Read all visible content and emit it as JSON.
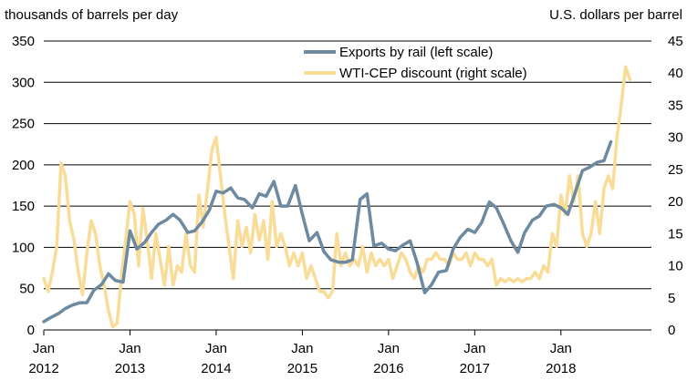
{
  "chart_data": {
    "type": "line",
    "left_axis_title": "thousands of barrels  per day",
    "right_axis_title": "U.S. dollars  per barrel",
    "left_axis": {
      "min": 0,
      "max": 350,
      "ticks": [
        "0",
        "50",
        "100",
        "150",
        "200",
        "250",
        "300",
        "350"
      ]
    },
    "right_axis": {
      "min": 0,
      "max": 45,
      "ticks": [
        "0",
        "5",
        "10",
        "15",
        "20",
        "25",
        "30",
        "35",
        "40",
        "45"
      ]
    },
    "x_range": [
      2012.0,
      2019.05
    ],
    "x_ticks": [
      {
        "month": "Jan",
        "year": "2012",
        "x": 2012
      },
      {
        "month": "Jan",
        "year": "2013",
        "x": 2013
      },
      {
        "month": "Jan",
        "year": "2014",
        "x": 2014
      },
      {
        "month": "Jan",
        "year": "2015",
        "x": 2015
      },
      {
        "month": "Jan",
        "year": "2016",
        "x": 2016
      },
      {
        "month": "Jan",
        "year": "2017",
        "x": 2017
      },
      {
        "month": "Jan",
        "year": "2018",
        "x": 2018
      }
    ],
    "gridlines": true,
    "legend_position": "top-center",
    "series": [
      {
        "name": "Exports by rail (left scale)",
        "axis": "left",
        "color": "#6d8aa1",
        "points": [
          [
            2012.0,
            10
          ],
          [
            2012.08,
            15
          ],
          [
            2012.17,
            20
          ],
          [
            2012.25,
            26
          ],
          [
            2012.33,
            30
          ],
          [
            2012.42,
            33
          ],
          [
            2012.5,
            33
          ],
          [
            2012.58,
            48
          ],
          [
            2012.67,
            55
          ],
          [
            2012.75,
            68
          ],
          [
            2012.83,
            60
          ],
          [
            2012.92,
            58
          ],
          [
            2013.0,
            120
          ],
          [
            2013.08,
            98
          ],
          [
            2013.17,
            106
          ],
          [
            2013.25,
            118
          ],
          [
            2013.33,
            128
          ],
          [
            2013.42,
            133
          ],
          [
            2013.5,
            140
          ],
          [
            2013.58,
            133
          ],
          [
            2013.67,
            118
          ],
          [
            2013.75,
            120
          ],
          [
            2013.83,
            130
          ],
          [
            2013.92,
            145
          ],
          [
            2014.0,
            168
          ],
          [
            2014.08,
            166
          ],
          [
            2014.17,
            172
          ],
          [
            2014.25,
            160
          ],
          [
            2014.33,
            158
          ],
          [
            2014.42,
            148
          ],
          [
            2014.5,
            165
          ],
          [
            2014.58,
            162
          ],
          [
            2014.67,
            180
          ],
          [
            2014.75,
            150
          ],
          [
            2014.83,
            150
          ],
          [
            2014.92,
            175
          ],
          [
            2015.0,
            140
          ],
          [
            2015.08,
            108
          ],
          [
            2015.17,
            118
          ],
          [
            2015.25,
            95
          ],
          [
            2015.33,
            85
          ],
          [
            2015.42,
            82
          ],
          [
            2015.5,
            82
          ],
          [
            2015.58,
            85
          ],
          [
            2015.67,
            158
          ],
          [
            2015.75,
            165
          ],
          [
            2015.83,
            102
          ],
          [
            2015.92,
            105
          ],
          [
            2016.0,
            98
          ],
          [
            2016.08,
            96
          ],
          [
            2016.17,
            103
          ],
          [
            2016.25,
            108
          ],
          [
            2016.33,
            82
          ],
          [
            2016.42,
            45
          ],
          [
            2016.5,
            55
          ],
          [
            2016.58,
            70
          ],
          [
            2016.67,
            72
          ],
          [
            2016.75,
            98
          ],
          [
            2016.83,
            112
          ],
          [
            2016.92,
            122
          ],
          [
            2017.0,
            118
          ],
          [
            2017.08,
            130
          ],
          [
            2017.17,
            155
          ],
          [
            2017.25,
            148
          ],
          [
            2017.33,
            130
          ],
          [
            2017.42,
            108
          ],
          [
            2017.5,
            94
          ],
          [
            2017.58,
            118
          ],
          [
            2017.67,
            133
          ],
          [
            2017.75,
            138
          ],
          [
            2017.83,
            150
          ],
          [
            2017.92,
            152
          ],
          [
            2018.0,
            148
          ],
          [
            2018.08,
            140
          ],
          [
            2018.17,
            168
          ],
          [
            2018.25,
            193
          ],
          [
            2018.33,
            197
          ],
          [
            2018.42,
            203
          ],
          [
            2018.5,
            205
          ],
          [
            2018.58,
            228
          ]
        ]
      },
      {
        "name": "WTI-CEP discount (right scale)",
        "axis": "right",
        "color": "#f8dc98",
        "points": [
          [
            2012.0,
            8
          ],
          [
            2012.05,
            6
          ],
          [
            2012.1,
            9
          ],
          [
            2012.15,
            13
          ],
          [
            2012.2,
            26
          ],
          [
            2012.25,
            24
          ],
          [
            2012.3,
            17
          ],
          [
            2012.35,
            14
          ],
          [
            2012.4,
            9
          ],
          [
            2012.45,
            5.5
          ],
          [
            2012.5,
            12
          ],
          [
            2012.55,
            17
          ],
          [
            2012.6,
            15
          ],
          [
            2012.65,
            10
          ],
          [
            2012.7,
            7
          ],
          [
            2012.75,
            3
          ],
          [
            2012.8,
            0.5
          ],
          [
            2012.85,
            1
          ],
          [
            2012.9,
            8
          ],
          [
            2012.95,
            14
          ],
          [
            2013.0,
            20
          ],
          [
            2013.05,
            18
          ],
          [
            2013.1,
            10
          ],
          [
            2013.15,
            19
          ],
          [
            2013.2,
            14
          ],
          [
            2013.25,
            8
          ],
          [
            2013.3,
            15
          ],
          [
            2013.35,
            11
          ],
          [
            2013.4,
            7
          ],
          [
            2013.45,
            13
          ],
          [
            2013.5,
            7
          ],
          [
            2013.55,
            10
          ],
          [
            2013.6,
            9
          ],
          [
            2013.65,
            15
          ],
          [
            2013.7,
            10
          ],
          [
            2013.75,
            9
          ],
          [
            2013.8,
            21
          ],
          [
            2013.85,
            16
          ],
          [
            2013.9,
            22
          ],
          [
            2013.95,
            28
          ],
          [
            2014.0,
            30
          ],
          [
            2014.05,
            24
          ],
          [
            2014.1,
            18
          ],
          [
            2014.15,
            13
          ],
          [
            2014.2,
            8
          ],
          [
            2014.25,
            17
          ],
          [
            2014.3,
            13
          ],
          [
            2014.35,
            16
          ],
          [
            2014.4,
            12
          ],
          [
            2014.45,
            18
          ],
          [
            2014.5,
            14
          ],
          [
            2014.55,
            17
          ],
          [
            2014.6,
            11
          ],
          [
            2014.65,
            20
          ],
          [
            2014.7,
            13
          ],
          [
            2014.75,
            15
          ],
          [
            2014.8,
            13
          ],
          [
            2014.85,
            10
          ],
          [
            2014.9,
            12
          ],
          [
            2014.95,
            10
          ],
          [
            2015.0,
            12
          ],
          [
            2015.05,
            8
          ],
          [
            2015.1,
            10
          ],
          [
            2015.15,
            8
          ],
          [
            2015.2,
            6
          ],
          [
            2015.25,
            6
          ],
          [
            2015.3,
            5
          ],
          [
            2015.35,
            6
          ],
          [
            2015.4,
            15
          ],
          [
            2015.45,
            10
          ],
          [
            2015.5,
            12
          ],
          [
            2015.55,
            10
          ],
          [
            2015.6,
            11
          ],
          [
            2015.65,
            10
          ],
          [
            2015.7,
            13
          ],
          [
            2015.75,
            9
          ],
          [
            2015.8,
            12
          ],
          [
            2015.85,
            10
          ],
          [
            2015.9,
            11
          ],
          [
            2015.95,
            10
          ],
          [
            2016.0,
            11
          ],
          [
            2016.05,
            8
          ],
          [
            2016.1,
            10
          ],
          [
            2016.15,
            12
          ],
          [
            2016.2,
            11
          ],
          [
            2016.25,
            9
          ],
          [
            2016.3,
            8
          ],
          [
            2016.35,
            10
          ],
          [
            2016.4,
            9
          ],
          [
            2016.45,
            11
          ],
          [
            2016.5,
            11
          ],
          [
            2016.55,
            12
          ],
          [
            2016.6,
            11
          ],
          [
            2016.65,
            11
          ],
          [
            2016.7,
            10
          ],
          [
            2016.75,
            12
          ],
          [
            2016.8,
            11
          ],
          [
            2016.85,
            11
          ],
          [
            2016.9,
            12
          ],
          [
            2016.95,
            10
          ],
          [
            2017.0,
            12
          ],
          [
            2017.05,
            11
          ],
          [
            2017.1,
            11
          ],
          [
            2017.15,
            10
          ],
          [
            2017.2,
            11
          ],
          [
            2017.25,
            7
          ],
          [
            2017.3,
            8
          ],
          [
            2017.35,
            7.5
          ],
          [
            2017.4,
            8
          ],
          [
            2017.45,
            7.5
          ],
          [
            2017.5,
            8
          ],
          [
            2017.55,
            7.5
          ],
          [
            2017.6,
            8
          ],
          [
            2017.65,
            8
          ],
          [
            2017.7,
            9
          ],
          [
            2017.75,
            8
          ],
          [
            2017.8,
            10
          ],
          [
            2017.85,
            9
          ],
          [
            2017.9,
            15
          ],
          [
            2017.95,
            13
          ],
          [
            2018.0,
            21
          ],
          [
            2018.05,
            18
          ],
          [
            2018.1,
            24
          ],
          [
            2018.15,
            20
          ],
          [
            2018.2,
            24
          ],
          [
            2018.25,
            15
          ],
          [
            2018.3,
            13
          ],
          [
            2018.35,
            15
          ],
          [
            2018.4,
            20
          ],
          [
            2018.45,
            15
          ],
          [
            2018.5,
            22
          ],
          [
            2018.55,
            24
          ],
          [
            2018.6,
            22
          ],
          [
            2018.65,
            30
          ],
          [
            2018.7,
            35
          ],
          [
            2018.75,
            41
          ],
          [
            2018.8,
            39
          ]
        ]
      }
    ]
  }
}
